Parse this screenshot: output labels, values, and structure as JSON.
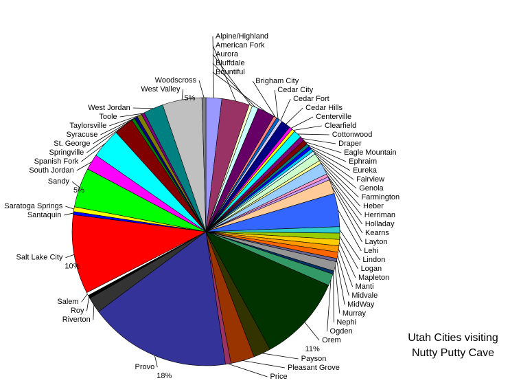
{
  "chart_data": {
    "type": "pie",
    "title": [
      "Utah Cities visiting",
      "Nutty Putty Cave"
    ],
    "categories": [
      "Alpine/Highland",
      "American Fork",
      "Aurora",
      "Bluffdale",
      "Bountiful",
      "Brigham City",
      "Cedar City",
      "Cedar Fort",
      "Cedar Hills",
      "Centerville",
      "Clearfield",
      "Cottonwood",
      "Draper",
      "Eagle Mountain",
      "Ephraim",
      "Eureka",
      "Fairview",
      "Genola",
      "Farmington",
      "Heber",
      "Herriman",
      "Holladay",
      "Kearns",
      "Layton",
      "Lehi",
      "Lindon",
      "Logan",
      "Mapleton",
      "Manti",
      "Midvale",
      "MidWay",
      "Murray",
      "Nephi",
      "Ogden",
      "Orem",
      "Payson",
      "Pleasant Grove",
      "Price",
      "Provo",
      "Riverton",
      "Roy",
      "Salem",
      "Salt Lake City",
      "Santaquin",
      "Saratoga Springs",
      "Sandy",
      "South Jordan",
      "Spanish Fork",
      "Springville",
      "St. George",
      "Syracuse",
      "Taylorsville",
      "Toole",
      "West Jordan",
      "West Valley",
      "Woodscross"
    ],
    "values": [
      2,
      3.5,
      0.4,
      0.8,
      2.2,
      0.4,
      0.4,
      0.4,
      1.2,
      0.4,
      0.4,
      1,
      0.6,
      0.6,
      0.4,
      0.4,
      0.4,
      0.4,
      1,
      0.4,
      1.5,
      0.4,
      0.4,
      1.8,
      4.2,
      0.8,
      0.8,
      0.8,
      0.8,
      0.8,
      0.4,
      1.2,
      0.4,
      1.5,
      11,
      2.2,
      3,
      0.7,
      18,
      2,
      0.4,
      0.4,
      10,
      0.4,
      0.6,
      5,
      2,
      3.8,
      2.5,
      0.4,
      0.4,
      0.6,
      0.4,
      2.5,
      5,
      0.5
    ],
    "value_labels": [
      null,
      null,
      null,
      null,
      null,
      null,
      null,
      null,
      null,
      null,
      null,
      null,
      null,
      null,
      null,
      null,
      null,
      null,
      null,
      null,
      null,
      null,
      null,
      null,
      null,
      null,
      null,
      null,
      null,
      null,
      null,
      null,
      null,
      null,
      "11%",
      null,
      null,
      null,
      "18%",
      null,
      null,
      null,
      "10%",
      null,
      null,
      "5%",
      null,
      null,
      null,
      null,
      null,
      null,
      null,
      null,
      "5%",
      null
    ],
    "colors": [
      "#9999FF",
      "#993366",
      "#FFFFCC",
      "#CCFFFF",
      "#660066",
      "#FF8080",
      "#0066CC",
      "#CCCCFF",
      "#000080",
      "#FF00FF",
      "#FFFF00",
      "#00FFFF",
      "#800080",
      "#800000",
      "#008080",
      "#0000FF",
      "#00CCFF",
      "#CCFFFF",
      "#CCFFCC",
      "#FFFF99",
      "#99CCFF",
      "#FF99CC",
      "#CC99FF",
      "#FFCC99",
      "#3366FF",
      "#33CCCC",
      "#99CC00",
      "#FFCC00",
      "#FF9900",
      "#FF6600",
      "#666699",
      "#969696",
      "#003366",
      "#339966",
      "#003300",
      "#333300",
      "#993300",
      "#993366",
      "#333399",
      "#333333",
      "#000000",
      "#FFFFFF",
      "#FF0000",
      "#0000FF",
      "#FFFF00",
      "#00FF00",
      "#FF00FF",
      "#00FFFF",
      "#800000",
      "#008000",
      "#000080",
      "#808000",
      "#800080",
      "#008080",
      "#C0C0C0",
      "#808080"
    ]
  }
}
